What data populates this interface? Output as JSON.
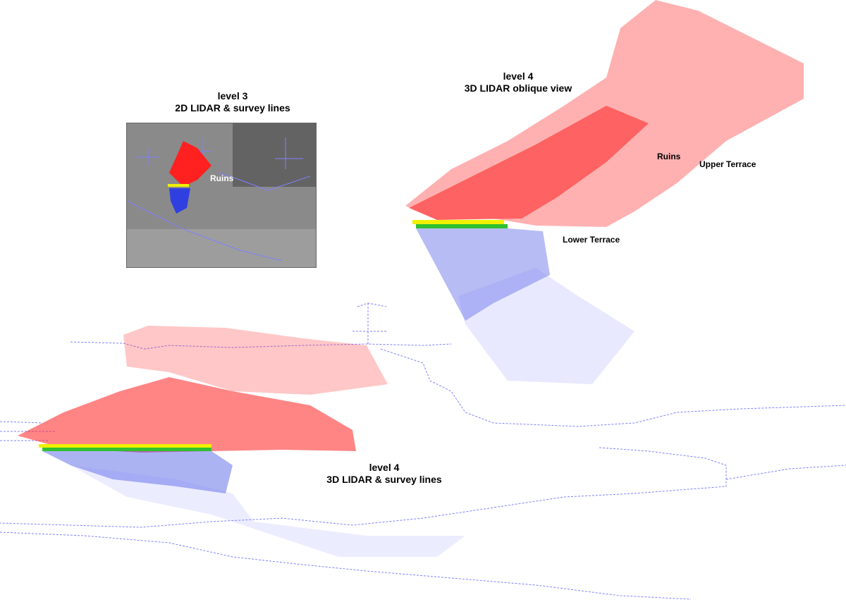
{
  "captions": {
    "level3": {
      "line1": "level 3",
      "line2": "2D LIDAR & survey lines"
    },
    "level4_oblique": {
      "line1": "level 4",
      "line2": "3D LIDAR oblique view"
    },
    "level4_survey": {
      "line1": "level 4",
      "line2": "3D LIDAR & survey lines"
    }
  },
  "labels": {
    "inset_ruins": "Ruins",
    "ruins": "Ruins",
    "upper_terrace": "Upper Terrace",
    "lower_terrace": "Lower Terrace"
  },
  "colors": {
    "upper_points": "#ff2020",
    "lower_points": "#3040e0",
    "transition_yellow": "#f0f000",
    "transition_green": "#30c030",
    "survey_lines": "#8080ff",
    "aerial_photo": "#8a8a8a"
  }
}
